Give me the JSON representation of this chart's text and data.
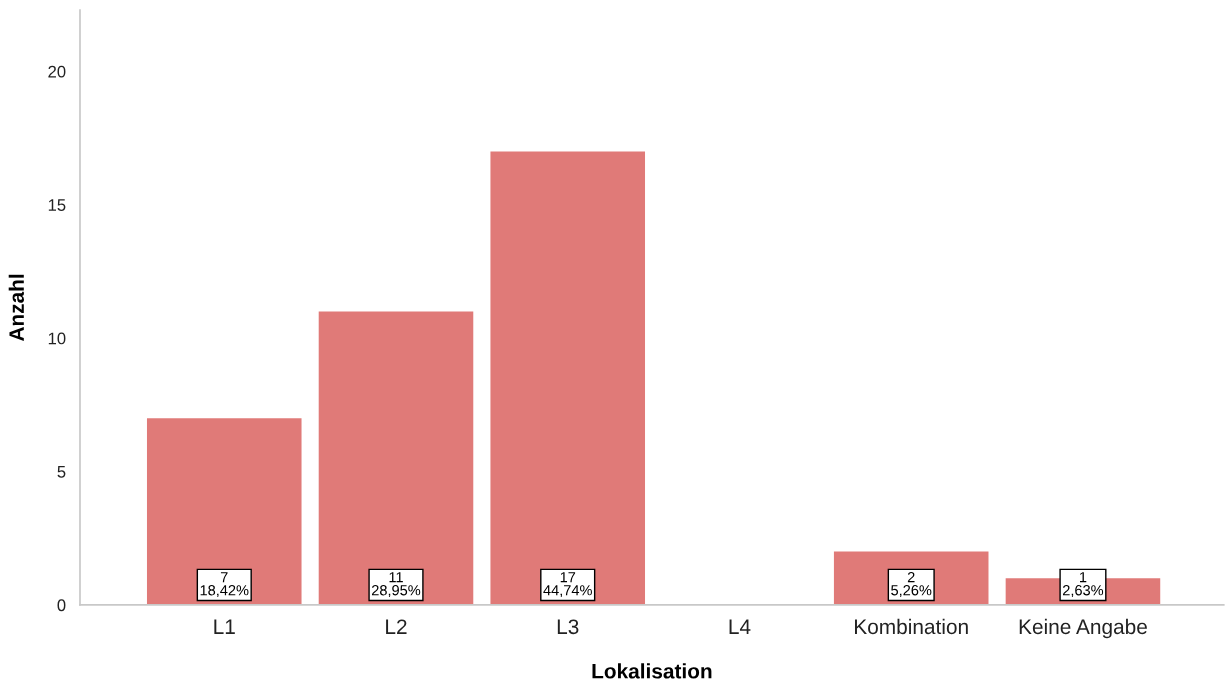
{
  "chart_data": {
    "type": "bar",
    "xlabel": "Lokalisation",
    "ylabel": "Anzahl",
    "categories": [
      "L1",
      "L2",
      "L3",
      "L4",
      "Kombination",
      "Keine Angabe"
    ],
    "values": [
      7,
      11,
      17,
      0,
      2,
      1
    ],
    "value_labels": [
      "7\n18,42%",
      "11\n28,95%",
      "17\n44,74%",
      null,
      "2\n5,26%",
      "1\n2,63%"
    ],
    "color": "#e07a78",
    "ylim": [
      0,
      22.3
    ],
    "yticks": [
      0,
      5,
      10,
      15,
      20
    ],
    "grid": false,
    "legend": false
  }
}
